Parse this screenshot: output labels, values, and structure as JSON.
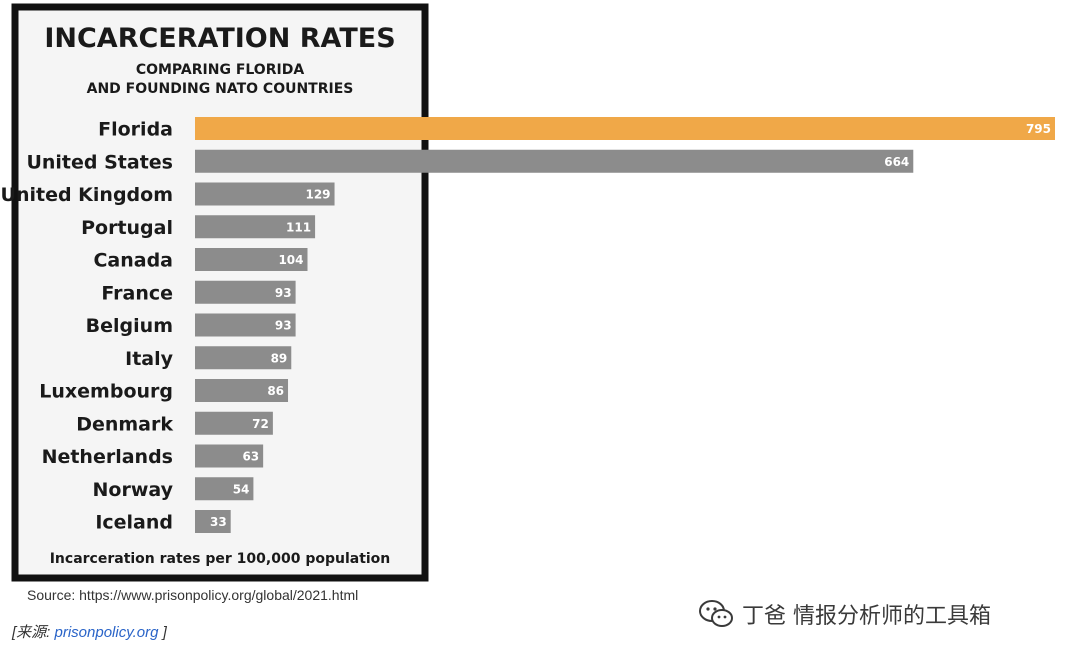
{
  "chart_data": {
    "type": "bar",
    "orientation": "horizontal",
    "title": "INCARCERATION RATES",
    "subtitle_lines": [
      "COMPARING FLORIDA",
      "AND FOUNDING NATO COUNTRIES"
    ],
    "categories": [
      "Florida",
      "United States",
      "United Kingdom",
      "Portugal",
      "Canada",
      "France",
      "Belgium",
      "Italy",
      "Luxembourg",
      "Denmark",
      "Netherlands",
      "Norway",
      "Iceland"
    ],
    "values": [
      795,
      664,
      129,
      111,
      104,
      93,
      93,
      89,
      86,
      72,
      63,
      54,
      33
    ],
    "highlight_category": "Florida",
    "xlabel": "Incarceration rates per 100,000 population",
    "xlim": [
      0,
      795
    ],
    "colors": {
      "highlight": "#F0A848",
      "default": "#8C8C8C",
      "panel": "#F5F5F5",
      "border": "#111111"
    }
  },
  "source_text": "Source: https://www.prisonpolicy.org/global/2021.html",
  "credit": {
    "prefix": "[来源: ",
    "link": "prisonpolicy.org",
    "suffix": " ]"
  },
  "watermark": {
    "icon": "wechat-icon",
    "text": "丁爸 情报分析师的工具箱"
  }
}
